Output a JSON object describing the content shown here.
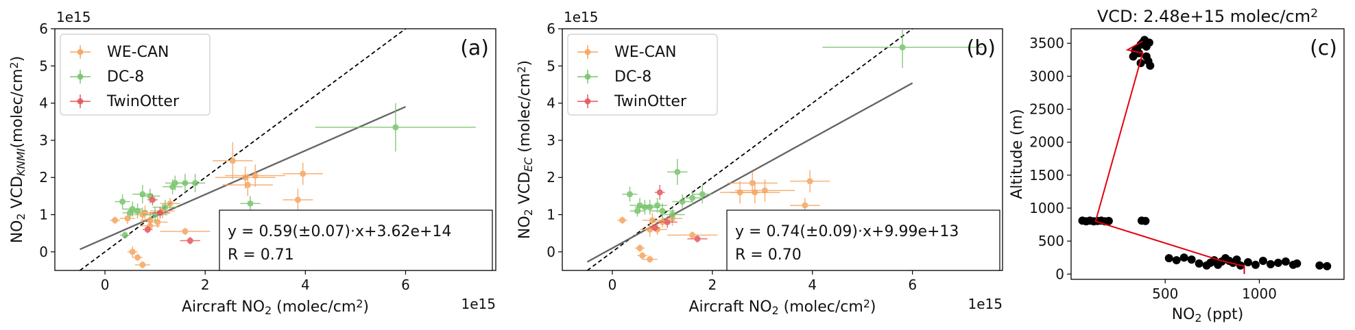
{
  "legend_labels": [
    "WE-CAN",
    "DC-8",
    "TwinOtter"
  ],
  "series_colors": {
    "WE-CAN": "#f5a45e",
    "DC-8": "#77c36b",
    "TwinOtter": "#e4545c"
  },
  "profile_colors": {
    "points": "#000000",
    "line": "#e3000b"
  },
  "chart_data": [
    {
      "type": "scatter",
      "panel_label": "(a)",
      "xlabel": "Aircraft NO₂ (molec/cm²)",
      "ylabel": "NO₂ VCD_KNMI(molec/cm²)",
      "x_offset_text": "1e15",
      "y_offset_text": "1e15",
      "xlim": [
        -1.0,
        7.8
      ],
      "ylim": [
        -0.5,
        6.0
      ],
      "xticks": [
        0,
        2,
        4,
        6
      ],
      "yticks": [
        0,
        1,
        2,
        3,
        4,
        5,
        6
      ],
      "fit": {
        "slope": 0.59,
        "intercept": 0.362,
        "x_range": [
          -0.5,
          6.0
        ]
      },
      "one_to_one": {
        "x_range": [
          -0.5,
          6.0
        ]
      },
      "annotation": [
        "y = 0.59(±0.07)·x+3.62e+14",
        "R = 0.71"
      ],
      "series": [
        {
          "name": "WE-CAN",
          "points": [
            [
              0.2,
              0.85,
              0.1,
              0.1
            ],
            [
              0.45,
              0.9,
              0.15,
              0.15
            ],
            [
              0.55,
              0.0,
              0.1,
              0.15
            ],
            [
              0.65,
              -0.15,
              0.1,
              0.1
            ],
            [
              0.75,
              -0.35,
              0.15,
              0.1
            ],
            [
              0.75,
              1.0,
              0.2,
              0.2
            ],
            [
              0.8,
              1.05,
              0.2,
              0.2
            ],
            [
              0.9,
              0.7,
              0.2,
              0.15
            ],
            [
              0.9,
              0.85,
              0.2,
              0.2
            ],
            [
              1.05,
              0.8,
              0.2,
              0.15
            ],
            [
              1.15,
              1.1,
              0.25,
              0.2
            ],
            [
              1.3,
              1.3,
              0.2,
              0.15
            ],
            [
              1.6,
              0.55,
              0.5,
              0.1
            ],
            [
              2.55,
              2.45,
              0.4,
              0.5
            ],
            [
              2.8,
              2.0,
              0.6,
              0.3
            ],
            [
              2.85,
              1.8,
              0.5,
              0.3
            ],
            [
              3.0,
              2.05,
              0.6,
              0.3
            ],
            [
              3.85,
              1.4,
              0.3,
              0.3
            ],
            [
              3.95,
              2.1,
              0.4,
              0.3
            ]
          ]
        },
        {
          "name": "DC-8",
          "points": [
            [
              0.35,
              1.35,
              0.15,
              0.2
            ],
            [
              0.4,
              0.45,
              0.1,
              0.1
            ],
            [
              0.5,
              1.05,
              0.15,
              0.15
            ],
            [
              0.55,
              1.15,
              0.2,
              0.2
            ],
            [
              0.65,
              1.1,
              0.2,
              0.2
            ],
            [
              0.75,
              1.55,
              0.2,
              0.25
            ],
            [
              0.9,
              1.5,
              0.2,
              0.2
            ],
            [
              1.0,
              1.0,
              0.25,
              0.2
            ],
            [
              1.2,
              1.2,
              0.25,
              0.2
            ],
            [
              1.35,
              1.75,
              0.2,
              0.2
            ],
            [
              1.4,
              1.85,
              0.2,
              0.2
            ],
            [
              1.6,
              1.85,
              0.2,
              0.25
            ],
            [
              1.8,
              1.85,
              0.2,
              0.25
            ],
            [
              2.9,
              1.3,
              0.2,
              0.2
            ],
            [
              5.8,
              3.35,
              1.6,
              0.65
            ]
          ]
        },
        {
          "name": "TwinOtter",
          "points": [
            [
              0.85,
              0.6,
              0.1,
              0.1
            ],
            [
              0.95,
              1.4,
              0.1,
              0.15
            ],
            [
              1.1,
              1.05,
              0.2,
              0.15
            ],
            [
              1.7,
              0.3,
              0.2,
              0.1
            ]
          ]
        }
      ]
    },
    {
      "type": "scatter",
      "panel_label": "(b)",
      "xlabel": "Aircraft NO₂ (molec/cm²)",
      "ylabel": "NO₂ VCD_EC (molec/cm²)",
      "x_offset_text": "1e15",
      "y_offset_text": "1e15",
      "xlim": [
        -1.0,
        7.8
      ],
      "ylim": [
        -0.5,
        6.0
      ],
      "xticks": [
        0,
        2,
        4,
        6
      ],
      "yticks": [
        0,
        1,
        2,
        3,
        4,
        5,
        6
      ],
      "fit": {
        "slope": 0.74,
        "intercept": 0.0999,
        "x_range": [
          -0.5,
          6.0
        ]
      },
      "one_to_one": {
        "x_range": [
          -0.5,
          6.0
        ]
      },
      "annotation": [
        "y = 0.74(±0.09)·x+9.99e+13",
        "R = 0.70"
      ],
      "series": [
        {
          "name": "WE-CAN",
          "points": [
            [
              0.2,
              0.85,
              0.1,
              0.1
            ],
            [
              0.55,
              0.1,
              0.1,
              0.1
            ],
            [
              0.6,
              -0.1,
              0.1,
              0.1
            ],
            [
              0.75,
              -0.2,
              0.15,
              0.1
            ],
            [
              0.75,
              0.6,
              0.2,
              0.2
            ],
            [
              0.8,
              0.85,
              0.2,
              0.2
            ],
            [
              0.9,
              0.6,
              0.2,
              0.15
            ],
            [
              1.0,
              0.8,
              0.2,
              0.15
            ],
            [
              1.2,
              0.9,
              0.2,
              0.2
            ],
            [
              1.6,
              0.45,
              0.5,
              0.1
            ],
            [
              2.55,
              1.6,
              0.4,
              0.3
            ],
            [
              2.8,
              1.85,
              0.5,
              0.3
            ],
            [
              2.85,
              1.6,
              0.5,
              0.3
            ],
            [
              3.05,
              1.65,
              0.6,
              0.3
            ],
            [
              3.85,
              1.25,
              0.3,
              0.2
            ],
            [
              3.95,
              1.9,
              0.4,
              0.3
            ]
          ]
        },
        {
          "name": "DC-8",
          "points": [
            [
              0.35,
              1.55,
              0.15,
              0.2
            ],
            [
              0.5,
              1.1,
              0.15,
              0.15
            ],
            [
              0.55,
              1.25,
              0.2,
              0.2
            ],
            [
              0.65,
              1.2,
              0.2,
              0.2
            ],
            [
              0.75,
              1.2,
              0.2,
              0.2
            ],
            [
              0.9,
              1.25,
              0.2,
              0.2
            ],
            [
              1.0,
              1.1,
              0.25,
              0.2
            ],
            [
              1.2,
              1.0,
              0.25,
              0.2
            ],
            [
              1.3,
              2.15,
              0.2,
              0.35
            ],
            [
              1.4,
              1.35,
              0.2,
              0.2
            ],
            [
              1.6,
              1.45,
              0.2,
              0.2
            ],
            [
              1.8,
              1.55,
              0.2,
              0.25
            ],
            [
              5.8,
              5.5,
              1.6,
              0.55
            ]
          ]
        },
        {
          "name": "TwinOtter",
          "points": [
            [
              0.85,
              0.65,
              0.1,
              0.1
            ],
            [
              0.95,
              1.6,
              0.1,
              0.2
            ],
            [
              1.1,
              0.8,
              0.2,
              0.15
            ],
            [
              1.7,
              0.35,
              0.2,
              0.1
            ]
          ]
        }
      ]
    },
    {
      "type": "scatter",
      "panel_label": "(c)",
      "title": "VCD: 2.48e+15 molec/cm²",
      "xlabel": "NO₂ (ppt)",
      "ylabel": "Altitude (m)",
      "xlim": [
        0,
        1450
      ],
      "ylim": [
        -80,
        3720
      ],
      "xticks": [
        500,
        1000
      ],
      "yticks": [
        0,
        500,
        1000,
        1500,
        2000,
        2500,
        3000,
        3500
      ],
      "profile_line": [
        [
          920,
          0
        ],
        [
          920,
          120
        ],
        [
          800,
          200
        ],
        [
          130,
          800
        ],
        [
          380,
          3350
        ],
        [
          300,
          3400
        ],
        [
          380,
          3530
        ]
      ],
      "points": [
        [
          60,
          810
        ],
        [
          80,
          800
        ],
        [
          100,
          810
        ],
        [
          120,
          800
        ],
        [
          140,
          805
        ],
        [
          160,
          810
        ],
        [
          180,
          800
        ],
        [
          200,
          805
        ],
        [
          375,
          810
        ],
        [
          395,
          805
        ],
        [
          520,
          240
        ],
        [
          560,
          210
        ],
        [
          600,
          250
        ],
        [
          640,
          220
        ],
        [
          680,
          160
        ],
        [
          720,
          130
        ],
        [
          740,
          170
        ],
        [
          760,
          210
        ],
        [
          780,
          140
        ],
        [
          800,
          190
        ],
        [
          820,
          240
        ],
        [
          840,
          200
        ],
        [
          860,
          170
        ],
        [
          880,
          220
        ],
        [
          900,
          130
        ],
        [
          940,
          180
        ],
        [
          980,
          140
        ],
        [
          1020,
          200
        ],
        [
          1060,
          150
        ],
        [
          1100,
          170
        ],
        [
          1140,
          190
        ],
        [
          1180,
          140
        ],
        [
          1200,
          160
        ],
        [
          1320,
          130
        ],
        [
          1360,
          120
        ],
        [
          330,
          3300
        ],
        [
          350,
          3420
        ],
        [
          360,
          3350
        ],
        [
          370,
          3200
        ],
        [
          380,
          3510
        ],
        [
          390,
          3550
        ],
        [
          400,
          3300
        ],
        [
          410,
          3230
        ],
        [
          420,
          3160
        ],
        [
          400,
          3450
        ],
        [
          370,
          3480
        ],
        [
          340,
          3380
        ],
        [
          415,
          3510
        ]
      ]
    }
  ]
}
